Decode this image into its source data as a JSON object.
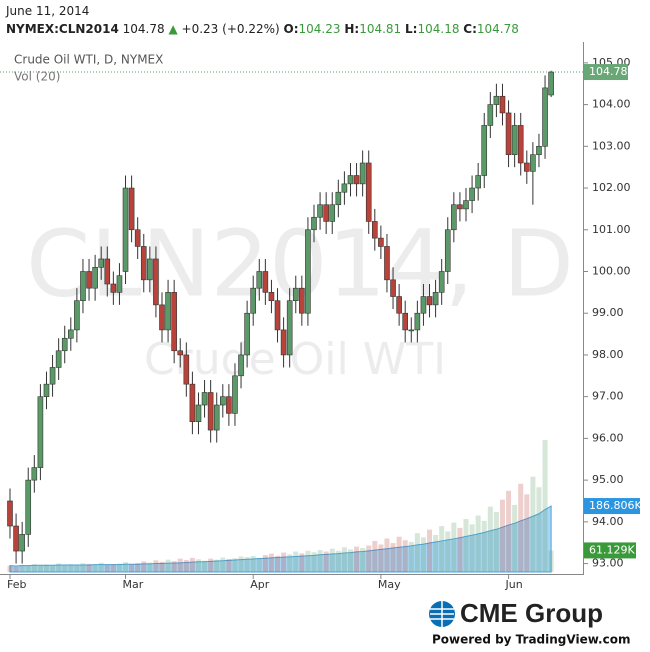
{
  "header": {
    "date": "June 11, 2014",
    "symbol": "NYMEX:CLN2014",
    "change": "+0.23 (+0.22%)",
    "ohlc_labels": [
      "O:",
      "H:",
      "L:",
      "C:"
    ]
  },
  "chart_data": {
    "type": "candlestick",
    "title": "Crude Oil WTI, D, NYMEX",
    "watermark": "CLN2014, D",
    "watermark_sub": "Crude Oil WTI",
    "categories": [
      "Feb",
      null,
      null,
      null,
      null,
      null,
      null,
      null,
      null,
      null,
      null,
      null,
      null,
      null,
      null,
      null,
      null,
      null,
      null,
      "Mar",
      null,
      null,
      null,
      null,
      null,
      null,
      null,
      null,
      null,
      null,
      null,
      null,
      null,
      null,
      null,
      null,
      null,
      null,
      null,
      null,
      "Apr",
      null,
      null,
      null,
      null,
      null,
      null,
      null,
      null,
      null,
      null,
      null,
      null,
      null,
      null,
      null,
      null,
      null,
      null,
      null,
      null,
      "May",
      null,
      null,
      null,
      null,
      null,
      null,
      null,
      null,
      null,
      null,
      null,
      null,
      null,
      null,
      null,
      null,
      null,
      null,
      null,
      null,
      "Jun",
      null,
      null,
      null,
      null,
      null,
      null,
      null
    ],
    "series": {
      "open": [
        94.5,
        93.9,
        93.3,
        93.7,
        95.0,
        95.3,
        97.0,
        97.3,
        97.7,
        98.1,
        98.4,
        98.6,
        99.3,
        100.0,
        99.6,
        100.1,
        100.3,
        99.7,
        99.5,
        100.0,
        102.0,
        101.0,
        100.6,
        99.8,
        100.3,
        99.2,
        98.6,
        99.5,
        98.1,
        98.0,
        97.3,
        96.4,
        96.8,
        97.1,
        96.2,
        96.8,
        97.0,
        96.6,
        97.5,
        98.0,
        99.0,
        99.6,
        100.0,
        99.5,
        99.3,
        98.6,
        98.0,
        99.3,
        99.6,
        99.0,
        101.0,
        101.3,
        101.6,
        101.2,
        101.6,
        101.9,
        102.1,
        102.3,
        102.1,
        102.6,
        101.2,
        100.8,
        100.6,
        99.8,
        99.4,
        99.0,
        98.6,
        98.6,
        99.0,
        99.4,
        99.2,
        99.5,
        100.0,
        101.0,
        101.6,
        101.5,
        101.7,
        102.0,
        102.3,
        103.5,
        104.0,
        104.2,
        103.8,
        102.8,
        103.5,
        102.6,
        102.4,
        102.8,
        103.0,
        104.23
      ],
      "high": [
        94.8,
        94.2,
        94.0,
        95.3,
        95.6,
        97.3,
        97.6,
        98.0,
        98.4,
        98.7,
        98.9,
        99.6,
        100.3,
        100.3,
        100.4,
        100.6,
        100.6,
        100.0,
        100.2,
        102.3,
        102.3,
        101.3,
        100.9,
        100.6,
        100.6,
        99.5,
        99.8,
        99.8,
        98.4,
        98.3,
        97.6,
        97.1,
        97.4,
        97.4,
        97.1,
        97.3,
        97.3,
        97.8,
        98.3,
        99.3,
        99.9,
        100.3,
        100.3,
        99.8,
        99.6,
        98.9,
        99.6,
        99.9,
        99.9,
        101.3,
        101.6,
        101.9,
        101.9,
        101.9,
        102.2,
        102.4,
        102.6,
        102.6,
        102.9,
        102.9,
        101.5,
        101.1,
        100.9,
        100.1,
        99.7,
        99.3,
        98.9,
        99.3,
        99.7,
        99.7,
        99.8,
        100.3,
        101.3,
        101.9,
        101.9,
        102.0,
        102.3,
        102.6,
        103.8,
        104.3,
        104.5,
        104.5,
        104.1,
        103.8,
        103.8,
        102.9,
        103.1,
        103.3,
        104.7,
        104.81
      ],
      "low": [
        93.6,
        93.0,
        93.0,
        93.4,
        94.7,
        95.0,
        96.7,
        97.0,
        97.4,
        97.8,
        98.1,
        98.3,
        99.0,
        99.3,
        99.3,
        99.8,
        99.4,
        99.2,
        99.2,
        99.7,
        100.7,
        100.3,
        99.5,
        99.5,
        98.9,
        98.3,
        98.3,
        97.8,
        97.7,
        97.0,
        96.1,
        96.1,
        96.5,
        95.9,
        95.9,
        96.5,
        96.3,
        96.3,
        97.2,
        97.7,
        98.7,
        99.3,
        99.2,
        99.0,
        98.3,
        97.7,
        97.7,
        99.0,
        98.7,
        98.7,
        100.7,
        101.0,
        100.9,
        100.9,
        101.3,
        101.6,
        101.8,
        101.8,
        101.8,
        100.9,
        100.5,
        100.3,
        99.5,
        99.1,
        98.7,
        98.3,
        98.3,
        98.3,
        98.7,
        98.9,
        98.9,
        99.2,
        99.7,
        100.7,
        101.2,
        101.2,
        101.4,
        101.7,
        102.0,
        103.2,
        103.7,
        103.5,
        102.5,
        102.5,
        102.3,
        102.1,
        101.6,
        102.5,
        102.7,
        104.18
      ],
      "close": [
        93.9,
        93.3,
        93.7,
        95.0,
        95.3,
        97.0,
        97.3,
        97.7,
        98.1,
        98.4,
        98.6,
        99.3,
        100.0,
        99.6,
        100.1,
        100.3,
        99.7,
        99.5,
        99.9,
        102.0,
        101.0,
        100.6,
        99.8,
        100.3,
        99.2,
        98.6,
        99.5,
        98.1,
        98.0,
        97.3,
        96.4,
        96.8,
        97.1,
        96.2,
        96.8,
        97.0,
        96.6,
        97.5,
        98.0,
        99.0,
        99.6,
        100.0,
        99.5,
        99.3,
        98.6,
        98.0,
        99.3,
        99.6,
        99.0,
        101.0,
        101.3,
        101.6,
        101.2,
        101.6,
        101.9,
        102.1,
        102.3,
        102.1,
        102.6,
        101.2,
        100.8,
        100.6,
        99.8,
        99.4,
        99.0,
        98.6,
        98.6,
        99.0,
        99.4,
        99.2,
        99.5,
        100.0,
        101.0,
        101.6,
        101.5,
        101.7,
        102.0,
        102.3,
        103.5,
        104.0,
        104.2,
        103.8,
        102.8,
        103.5,
        102.6,
        102.4,
        102.8,
        103.0,
        104.4,
        104.78
      ],
      "up_color": "#5b9a68",
      "down_color": "#b8433a"
    },
    "volume": {
      "name": "Vol (20)",
      "values": [
        18,
        15,
        20,
        17,
        22,
        19,
        21,
        18,
        24,
        20,
        22,
        19,
        25,
        23,
        21,
        26,
        20,
        22,
        24,
        28,
        22,
        25,
        30,
        27,
        33,
        29,
        35,
        31,
        38,
        34,
        40,
        36,
        32,
        38,
        35,
        41,
        37,
        39,
        44,
        42,
        45,
        40,
        48,
        52,
        46,
        55,
        50,
        58,
        53,
        60,
        56,
        62,
        58,
        66,
        60,
        70,
        64,
        72,
        68,
        75,
        88,
        78,
        95,
        82,
        100,
        90,
        85,
        110,
        98,
        120,
        105,
        130,
        115,
        140,
        125,
        150,
        135,
        160,
        145,
        185,
        170,
        205,
        230,
        190,
        250,
        220,
        270,
        240,
        374,
        61.129
      ],
      "last_label": "61.129K",
      "ma": [
        18,
        17,
        18,
        18,
        19,
        19,
        19,
        19,
        20,
        20,
        20,
        20,
        20,
        20,
        21,
        21,
        21,
        21,
        21,
        22,
        22,
        22,
        23,
        23,
        24,
        24,
        25,
        25,
        26,
        27,
        28,
        29,
        29,
        30,
        31,
        32,
        33,
        34,
        35,
        36,
        37,
        38,
        39,
        40,
        41,
        42,
        43,
        44,
        45,
        46,
        47,
        49,
        50,
        51,
        52,
        54,
        55,
        57,
        58,
        60,
        62,
        64,
        66,
        68,
        70,
        72,
        74,
        77,
        79,
        82,
        85,
        88,
        91,
        94,
        97,
        101,
        104,
        108,
        112,
        117,
        121,
        127,
        133,
        138,
        145,
        151,
        158,
        165,
        177,
        186.806
      ],
      "ma_last_label": "186.806K",
      "ma_color": "#8cc8ef"
    },
    "ylim": [
      92.75,
      105.5
    ],
    "yticks": [
      {
        "value": 93,
        "label": "93.00"
      },
      {
        "value": 94,
        "label": "94.00"
      },
      {
        "value": 95,
        "label": "95.00"
      },
      {
        "value": 96,
        "label": "96.00"
      },
      {
        "value": 97,
        "label": "97.00"
      },
      {
        "value": 98,
        "label": "98.00"
      },
      {
        "value": 99,
        "label": "99.00"
      },
      {
        "value": 100,
        "label": "100.00"
      },
      {
        "value": 101,
        "label": "101.00"
      },
      {
        "value": 102,
        "label": "102.00"
      },
      {
        "value": 103,
        "label": "103.00"
      },
      {
        "value": 104,
        "label": "104.00"
      },
      {
        "value": 105,
        "label": "105.00"
      }
    ]
  },
  "footer": {
    "brand": "CME Group",
    "powered": "Powered by TradingView.com"
  }
}
